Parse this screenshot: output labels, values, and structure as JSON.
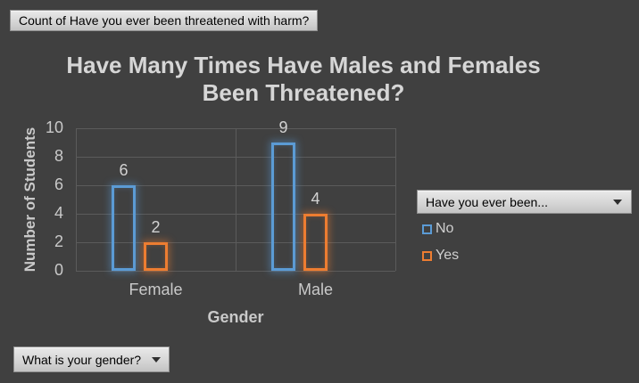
{
  "buttons": {
    "value_field_label": "Count of Have you ever been threatened with harm?",
    "legend_field_label": "Have you ever been...",
    "axis_field_label": "What is your gender?"
  },
  "chart_data": {
    "type": "bar",
    "title": "Have Many Times Have Males and Females Been Threatened?",
    "title_line1": "Have Many Times Have Males and Females",
    "title_line2": "Been Threatened?",
    "categories": [
      "Female",
      "Male"
    ],
    "series": [
      {
        "name": "No",
        "color": "#5B9BD5",
        "values": [
          6,
          9
        ]
      },
      {
        "name": "Yes",
        "color": "#ED7D31",
        "values": [
          2,
          4
        ]
      }
    ],
    "xlabel": "Gender",
    "ylabel": "Number of Students",
    "ylim": [
      0,
      10
    ],
    "yticks": [
      0,
      2,
      4,
      6,
      8,
      10
    ],
    "grid": true,
    "bar_style": "outline-glow",
    "data_labels": true,
    "legend_position": "right"
  },
  "colors": {
    "background": "#404040",
    "gridline": "#5B5B5B",
    "axis_text": "#C9C9C9",
    "label_text": "#D2D2D2",
    "title_text": "#D6D6D6",
    "series_blue": "#5B9BD5",
    "series_orange": "#ED7D31",
    "button_text": "#000000"
  }
}
